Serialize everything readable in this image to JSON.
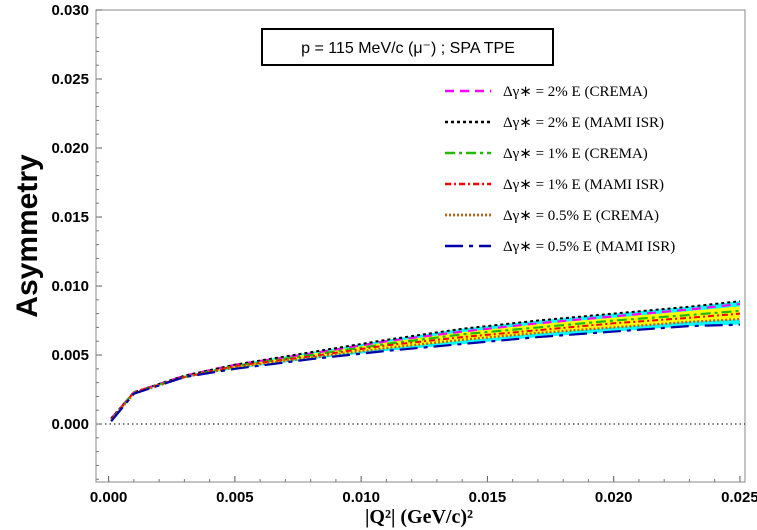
{
  "chart_data": {
    "type": "line",
    "title": "p = 115 MeV/c (μ⁻) ; SPA TPE",
    "xlabel": "|Q²|  (GeV/c)²",
    "ylabel": "Asymmetry",
    "xlim": [
      -0.0005,
      0.0252
    ],
    "ylim": [
      -0.0042,
      0.03
    ],
    "x_ticks": [
      "0.000",
      "0.005",
      "0.010",
      "0.015",
      "0.020",
      "0.025"
    ],
    "y_ticks": [
      "0.000",
      "0.005",
      "0.010",
      "0.015",
      "0.020",
      "0.025",
      "0.030"
    ],
    "grid": false,
    "legend_position": "top-right",
    "zero_line": true,
    "band": {
      "x": [
        0.0001,
        0.001,
        0.003,
        0.005,
        0.008,
        0.011,
        0.014,
        0.017,
        0.02,
        0.023,
        0.025
      ],
      "upper": [
        0.0004,
        0.0023,
        0.0035,
        0.0043,
        0.0052,
        0.0061,
        0.0069,
        0.0075,
        0.008,
        0.0085,
        0.0089
      ],
      "lower": [
        0.0002,
        0.0022,
        0.0034,
        0.004,
        0.0047,
        0.0053,
        0.0058,
        0.0063,
        0.0067,
        0.0071,
        0.0072
      ],
      "colors": [
        "#00ffff",
        "#ffff00"
      ]
    },
    "series": [
      {
        "name": "Δγ∗ = 2% E (CREMA)",
        "color": "#ff00ff",
        "dash": "9,6",
        "width": 2.2,
        "x": [
          0.0001,
          0.001,
          0.003,
          0.005,
          0.008,
          0.011,
          0.014,
          0.017,
          0.02,
          0.023,
          0.025
        ],
        "y": [
          0.0004,
          0.0023,
          0.0035,
          0.0043,
          0.0051,
          0.006,
          0.0067,
          0.0073,
          0.0078,
          0.0083,
          0.0087
        ]
      },
      {
        "name": "Δγ∗ = 2% E (MAMI ISR)",
        "color": "#000000",
        "dash": "3,3",
        "width": 2,
        "x": [
          0.0001,
          0.001,
          0.003,
          0.005,
          0.008,
          0.011,
          0.014,
          0.017,
          0.02,
          0.023,
          0.025
        ],
        "y": [
          0.0004,
          0.0023,
          0.0035,
          0.0043,
          0.0052,
          0.0061,
          0.0069,
          0.0075,
          0.008,
          0.0085,
          0.0089
        ]
      },
      {
        "name": "Δγ∗ = 1% E (CREMA)",
        "color": "#22bb00",
        "dash": "10,4,3,4",
        "width": 2.2,
        "x": [
          0.0001,
          0.001,
          0.003,
          0.005,
          0.008,
          0.011,
          0.014,
          0.017,
          0.02,
          0.023,
          0.025
        ],
        "y": [
          0.0003,
          0.0023,
          0.0034,
          0.0042,
          0.005,
          0.0058,
          0.0065,
          0.007,
          0.0075,
          0.0079,
          0.0082
        ]
      },
      {
        "name": "Δγ∗ = 1% E (MAMI ISR)",
        "color": "#ff0000",
        "dash": "6,3,2,3",
        "width": 2,
        "x": [
          0.0001,
          0.001,
          0.003,
          0.005,
          0.008,
          0.011,
          0.014,
          0.017,
          0.02,
          0.023,
          0.025
        ],
        "y": [
          0.0003,
          0.0023,
          0.0034,
          0.0042,
          0.0049,
          0.0057,
          0.0063,
          0.0068,
          0.0073,
          0.0077,
          0.008
        ]
      },
      {
        "name": "Δγ∗ = 0.5% E (CREMA)",
        "color": "#b5651d",
        "dash": "2,2",
        "width": 2.4,
        "x": [
          0.0001,
          0.001,
          0.003,
          0.005,
          0.008,
          0.011,
          0.014,
          0.017,
          0.02,
          0.023,
          0.025
        ],
        "y": [
          0.0003,
          0.0022,
          0.0034,
          0.0041,
          0.0048,
          0.0055,
          0.0061,
          0.0066,
          0.007,
          0.0074,
          0.0076
        ]
      },
      {
        "name": "Δγ∗ = 0.5% E (MAMI ISR)",
        "color": "#0000aa",
        "dash": "18,6,4,6",
        "width": 2.2,
        "x": [
          0.0001,
          0.001,
          0.003,
          0.005,
          0.008,
          0.011,
          0.014,
          0.017,
          0.02,
          0.023,
          0.025
        ],
        "y": [
          0.0002,
          0.0022,
          0.0034,
          0.004,
          0.0047,
          0.0053,
          0.0058,
          0.0063,
          0.0067,
          0.0071,
          0.0072
        ]
      }
    ]
  }
}
